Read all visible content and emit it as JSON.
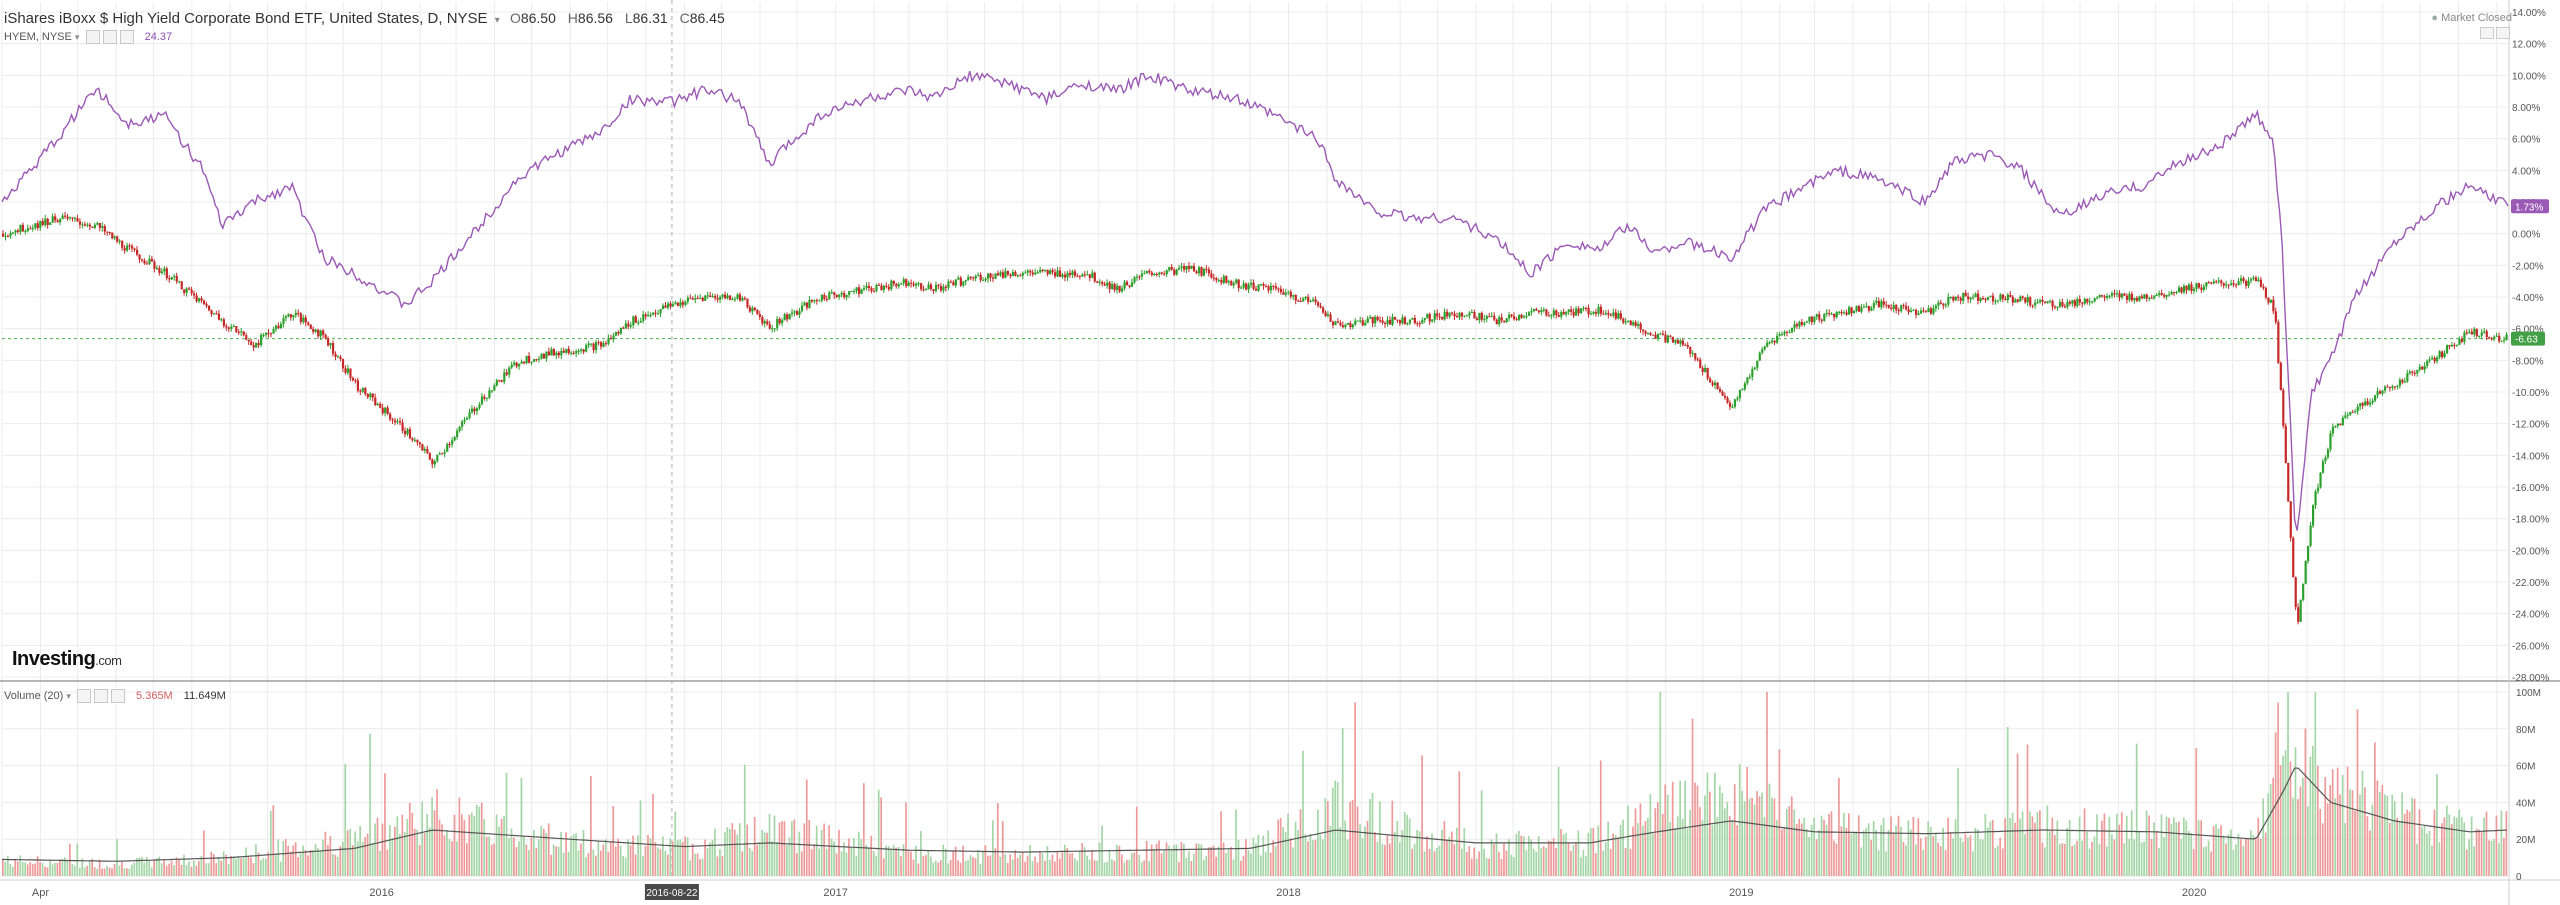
{
  "header": {
    "title": "iShares iBoxx $ High Yield Corporate Bond ETF, United States, D, NYSE",
    "ohlc": [
      {
        "label": "O",
        "value": "86.50"
      },
      {
        "label": "H",
        "value": "86.56"
      },
      {
        "label": "L",
        "value": "86.31"
      },
      {
        "label": "C",
        "value": "86.45"
      }
    ],
    "compare_symbol": "HYEM, NYSE",
    "compare_value": "24.37",
    "market_status": "Market Closed"
  },
  "volume_panel": {
    "label": "Volume (20)",
    "value_1": "5.365M",
    "value_2": "11.649M"
  },
  "logo": {
    "main": "Investing",
    "suffix": ".com"
  },
  "crosshair_date": "2016-08-22",
  "last_values": {
    "hyem_pct": "1.73%",
    "hyg_pct": "-6.63"
  },
  "colors": {
    "up": "#2ca02c",
    "down": "#c62828",
    "compare_line": "#9b59b6",
    "vol_up": "#a5d6a7",
    "vol_down": "#ef9a9a",
    "ma_line": "#555555",
    "grid": "#ececec"
  },
  "chart_data": [
    {
      "type": "line",
      "ylabel": "",
      "y_unit": "%",
      "ylim": [
        -28,
        14
      ],
      "y_ticks": [
        "14.00%",
        "12.00%",
        "10.00%",
        "8.00%",
        "6.00%",
        "4.00%",
        "2.00%",
        "0.00%",
        "-2.00%",
        "-4.00%",
        "-6.00%",
        "-8.00%",
        "-10.00%",
        "-12.00%",
        "-14.00%",
        "-16.00%",
        "-18.00%",
        "-20.00%",
        "-22.00%",
        "-24.00%",
        "-26.00%",
        "-28.00%"
      ],
      "x_ticks": [
        "Apr",
        "2016",
        "2017",
        "2018",
        "2019",
        "2020"
      ],
      "x_tick_dates": [
        "2015-04-01",
        "2016-01-01",
        "2017-01-01",
        "2018-01-01",
        "2019-01-01",
        "2020-01-01"
      ],
      "xlim": [
        "2015-03-01",
        "2020-09-10"
      ],
      "grid": true,
      "series": [
        {
          "name": "HYEM, NYSE",
          "color": "#9b59b6",
          "x": [
            "2015-03-01",
            "2015-04-15",
            "2015-05-15",
            "2015-06-10",
            "2015-07-10",
            "2015-08-10",
            "2015-08-25",
            "2015-09-20",
            "2015-10-20",
            "2015-11-15",
            "2015-12-10",
            "2016-01-20",
            "2016-02-11",
            "2016-03-20",
            "2016-04-20",
            "2016-05-20",
            "2016-06-27",
            "2016-07-20",
            "2016-08-22",
            "2016-09-15",
            "2016-10-15",
            "2016-11-09",
            "2016-11-15",
            "2016-12-20",
            "2017-01-25",
            "2017-03-01",
            "2017-03-20",
            "2017-04-20",
            "2017-05-20",
            "2017-06-20",
            "2017-07-20",
            "2017-08-15",
            "2017-09-10",
            "2017-10-15",
            "2017-11-20",
            "2017-12-20",
            "2018-01-25",
            "2018-02-08",
            "2018-03-10",
            "2018-04-10",
            "2018-05-15",
            "2018-06-20",
            "2018-07-15",
            "2018-08-15",
            "2018-09-10",
            "2018-10-01",
            "2018-10-25",
            "2018-11-15",
            "2018-12-24",
            "2019-01-20",
            "2019-02-20",
            "2019-03-20",
            "2019-04-20",
            "2019-05-30",
            "2019-06-20",
            "2019-07-20",
            "2019-08-15",
            "2019-09-15",
            "2019-10-20",
            "2019-11-20",
            "2019-12-20",
            "2020-01-20",
            "2020-02-20",
            "2020-03-05",
            "2020-03-12",
            "2020-03-23",
            "2020-04-05",
            "2020-04-20",
            "2020-05-10",
            "2020-06-10",
            "2020-07-10",
            "2020-08-10",
            "2020-09-10"
          ],
          "values": [
            2.0,
            6.0,
            9.2,
            7.0,
            7.5,
            4.0,
            0.5,
            2.0,
            3.0,
            -1.5,
            -2.5,
            -4.5,
            -3.0,
            0.5,
            3.5,
            5.0,
            6.5,
            8.5,
            8.3,
            9.0,
            8.5,
            4.2,
            5.0,
            7.5,
            8.5,
            9.0,
            8.5,
            10.0,
            9.5,
            8.5,
            9.5,
            9.0,
            10.0,
            9.0,
            8.5,
            7.5,
            6.0,
            3.5,
            1.5,
            1.0,
            1.0,
            -0.5,
            -2.5,
            -0.5,
            -1.0,
            0.5,
            -1.2,
            -0.5,
            -1.5,
            1.5,
            3.0,
            4.0,
            3.5,
            2.0,
            4.5,
            5.0,
            4.0,
            1.0,
            2.5,
            3.0,
            4.5,
            5.5,
            7.5,
            6.0,
            -1.0,
            -19.5,
            -10.0,
            -8.0,
            -4.0,
            -0.5,
            1.5,
            3.0,
            1.73
          ]
        },
        {
          "name": "iShares iBoxx $ High Yield Corporate Bond ETF",
          "style": "candlestick",
          "color_up": "#2ca02c",
          "color_down": "#c62828",
          "x": [
            "2015-03-01",
            "2015-04-15",
            "2015-05-15",
            "2015-06-10",
            "2015-07-10",
            "2015-08-10",
            "2015-08-25",
            "2015-09-20",
            "2015-10-20",
            "2015-11-15",
            "2015-12-10",
            "2016-01-20",
            "2016-02-11",
            "2016-03-20",
            "2016-04-20",
            "2016-05-20",
            "2016-06-27",
            "2016-07-20",
            "2016-08-22",
            "2016-09-15",
            "2016-10-15",
            "2016-11-09",
            "2016-11-15",
            "2016-12-20",
            "2017-01-25",
            "2017-03-01",
            "2017-03-20",
            "2017-04-20",
            "2017-05-20",
            "2017-06-20",
            "2017-07-20",
            "2017-08-15",
            "2017-09-10",
            "2017-10-15",
            "2017-11-20",
            "2017-12-20",
            "2018-01-25",
            "2018-02-08",
            "2018-03-10",
            "2018-04-10",
            "2018-05-15",
            "2018-06-20",
            "2018-07-15",
            "2018-08-15",
            "2018-09-10",
            "2018-10-01",
            "2018-10-25",
            "2018-11-15",
            "2018-12-24",
            "2019-01-20",
            "2019-02-20",
            "2019-03-20",
            "2019-04-20",
            "2019-05-30",
            "2019-06-20",
            "2019-07-20",
            "2019-08-15",
            "2019-09-15",
            "2019-10-20",
            "2019-11-20",
            "2019-12-20",
            "2020-01-20",
            "2020-02-20",
            "2020-03-05",
            "2020-03-12",
            "2020-03-23",
            "2020-04-05",
            "2020-04-20",
            "2020-05-10",
            "2020-06-10",
            "2020-07-10",
            "2020-08-10",
            "2020-09-10"
          ],
          "values": [
            0.0,
            1.0,
            0.5,
            -1.0,
            -2.5,
            -4.5,
            -5.5,
            -7.0,
            -5.0,
            -6.5,
            -9.5,
            -12.5,
            -14.5,
            -10.5,
            -8.0,
            -7.5,
            -7.0,
            -5.5,
            -4.5,
            -4.0,
            -4.0,
            -6.0,
            -5.5,
            -4.0,
            -3.5,
            -3.0,
            -3.5,
            -2.8,
            -2.5,
            -2.5,
            -2.5,
            -3.5,
            -2.5,
            -2.2,
            -3.2,
            -3.5,
            -4.5,
            -5.8,
            -5.5,
            -5.5,
            -5.0,
            -5.5,
            -5.0,
            -5.0,
            -4.8,
            -5.5,
            -6.5,
            -7.0,
            -11.0,
            -7.0,
            -5.5,
            -5.0,
            -4.5,
            -5.0,
            -4.0,
            -4.0,
            -4.2,
            -4.5,
            -4.0,
            -4.0,
            -3.5,
            -3.2,
            -3.0,
            -4.8,
            -12.0,
            -25.0,
            -17.0,
            -12.5,
            -11.0,
            -9.5,
            -8.0,
            -6.2,
            -6.63
          ]
        }
      ]
    },
    {
      "type": "bar",
      "title": "Volume (20)",
      "y_ticks": [
        "100M",
        "80M",
        "60M",
        "40M",
        "20M",
        "0"
      ],
      "ylim": [
        0,
        100
      ],
      "y_unit": "M",
      "x_ticks": [
        "Apr",
        "2016",
        "2017",
        "2018",
        "2019",
        "2020"
      ],
      "xlim": [
        "2015-03-01",
        "2020-09-10"
      ],
      "series": [
        {
          "name": "Volume",
          "x": [
            "2015-03-01",
            "2015-06-01",
            "2015-09-01",
            "2015-12-10",
            "2016-02-11",
            "2016-06-01",
            "2016-09-01",
            "2016-11-09",
            "2017-03-01",
            "2017-06-01",
            "2017-09-01",
            "2017-12-01",
            "2018-02-08",
            "2018-06-01",
            "2018-09-01",
            "2018-10-25",
            "2018-12-24",
            "2019-03-01",
            "2019-06-01",
            "2019-09-01",
            "2019-12-01",
            "2020-02-20",
            "2020-03-12",
            "2020-03-23",
            "2020-04-20",
            "2020-06-10",
            "2020-08-10",
            "2020-09-10"
          ],
          "values": [
            10,
            8,
            12,
            25,
            40,
            22,
            18,
            30,
            15,
            14,
            16,
            18,
            45,
            20,
            22,
            40,
            55,
            30,
            28,
            32,
            30,
            25,
            95,
            85,
            55,
            40,
            30,
            35
          ]
        },
        {
          "name": "MA (20)",
          "style": "line",
          "x": [
            "2015-03-01",
            "2015-06-01",
            "2015-09-01",
            "2015-12-10",
            "2016-02-11",
            "2016-06-01",
            "2016-09-01",
            "2016-11-09",
            "2017-03-01",
            "2017-06-01",
            "2017-09-01",
            "2017-12-01",
            "2018-02-08",
            "2018-06-01",
            "2018-09-01",
            "2018-10-25",
            "2018-12-24",
            "2019-03-01",
            "2019-06-01",
            "2019-09-01",
            "2019-12-01",
            "2020-02-20",
            "2020-03-12",
            "2020-03-23",
            "2020-04-20",
            "2020-06-10",
            "2020-08-10",
            "2020-09-10"
          ],
          "values": [
            9,
            8,
            10,
            15,
            25,
            20,
            16,
            18,
            14,
            13,
            14,
            15,
            25,
            18,
            18,
            24,
            30,
            24,
            23,
            25,
            24,
            20,
            45,
            60,
            40,
            30,
            24,
            25
          ]
        }
      ]
    }
  ]
}
